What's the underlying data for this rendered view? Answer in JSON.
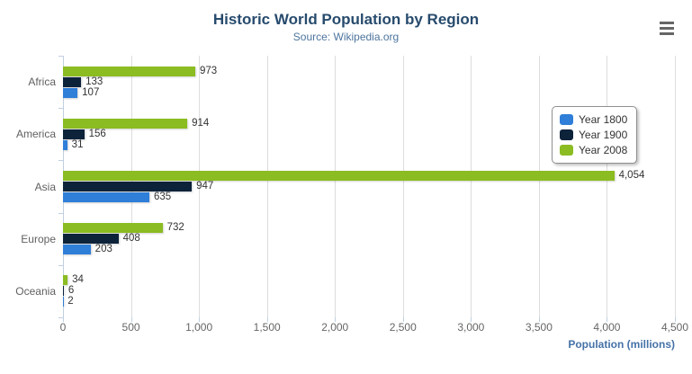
{
  "header": {
    "title": "Historic World Population by Region",
    "subtitle": "Source: Wikipedia.org"
  },
  "context_menu": {
    "icon": "hamburger-menu-icon",
    "color": "#666666"
  },
  "colors": {
    "title": "#274b6d",
    "subtitle": "#4d759e",
    "axis_line": "#c0d0e0",
    "gridline": "#dddddd",
    "tick_label": "#666666",
    "category_label": "#606060",
    "data_label": "#333333",
    "axis_title": "#4572a7",
    "legend_border": "#909090"
  },
  "chart_data": {
    "type": "bar",
    "title": "Historic World Population by Region",
    "subtitle": "Source: Wikipedia.org",
    "categories": [
      "Africa",
      "America",
      "Asia",
      "Europe",
      "Oceania"
    ],
    "series": [
      {
        "name": "Year 1800",
        "color": "#2f7ed8",
        "values": [
          107,
          31,
          635,
          203,
          2
        ]
      },
      {
        "name": "Year 1900",
        "color": "#0d233a",
        "values": [
          133,
          156,
          947,
          408,
          6
        ]
      },
      {
        "name": "Year 2008",
        "color": "#8bbc21",
        "values": [
          973,
          914,
          4054,
          732,
          34
        ]
      }
    ],
    "bar_order_top_to_bottom": [
      "Year 2008",
      "Year 1900",
      "Year 1800"
    ],
    "xlabel": "Population (millions)",
    "ylabel": "",
    "x_ticks": [
      0,
      500,
      1000,
      1500,
      2000,
      2500,
      3000,
      3500,
      4000,
      4500
    ],
    "xlim": [
      0,
      4500
    ],
    "grid": true,
    "legend_position": "right",
    "data_labels": true
  }
}
